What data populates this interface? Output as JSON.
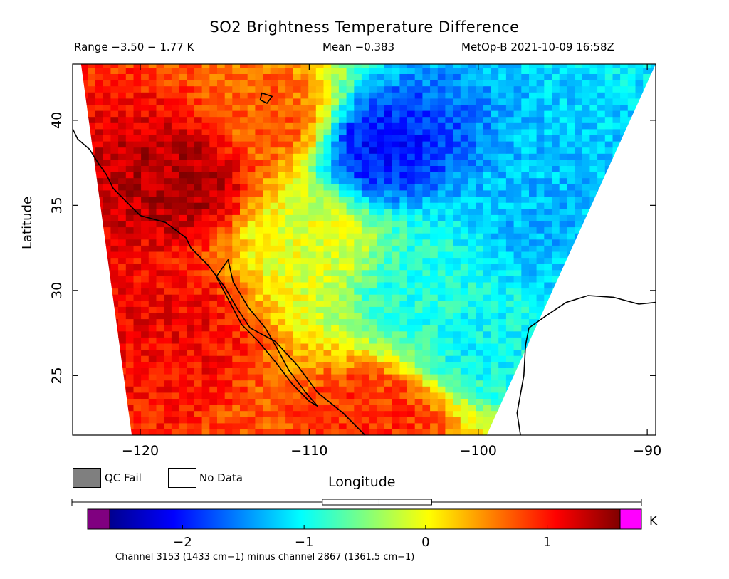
{
  "header": {
    "title": "SO2 Brightness Temperature Difference",
    "range": "Range −3.50 − 1.77 K",
    "mean": "Mean −0.383",
    "satellite_time": "MetOp-B 2021-10-09 16:58Z"
  },
  "legend": {
    "qc_fail": "QC Fail",
    "no_data": "No Data",
    "qc_color": "#7f7f7f",
    "nodata_color": "#ffffff"
  },
  "colorbar": {
    "unit": "K",
    "ticks": [
      "−2",
      "−1",
      "0",
      "1"
    ],
    "tick_values": [
      -2,
      -1,
      0,
      1
    ],
    "range": [
      -2.6,
      1.6
    ],
    "low_color": "#800080",
    "high_color": "#ff00ff",
    "caption": "Channel 3153 (1433 cm−1) minus channel 2867 (1361.5 cm−1)",
    "boxplot": {
      "min": -3.5,
      "q1": -0.85,
      "median": -0.383,
      "q3": 0.05,
      "max": 1.77
    }
  },
  "chart_data": {
    "type": "heatmap",
    "title": "SO2 Brightness Temperature Difference",
    "xlabel": "Longitude",
    "ylabel": "Latitude",
    "xlim": [
      -124,
      -89.5
    ],
    "ylim": [
      21.5,
      43.3
    ],
    "xticks": [
      -120,
      -110,
      -100,
      -90
    ],
    "xtick_labels": [
      "−120",
      "−110",
      "−100",
      "−90"
    ],
    "yticks": [
      25,
      30,
      35,
      40
    ],
    "ytick_labels": [
      "25",
      "30",
      "35",
      "40"
    ],
    "value_range": [
      -3.5,
      1.77
    ],
    "mean": -0.383,
    "unit": "K",
    "colormap": "jet",
    "swath_edges": {
      "west": [
        [
          -123.5,
          43.3
        ],
        [
          -120.5,
          21.5
        ]
      ],
      "east": [
        [
          -89.5,
          43.3
        ],
        [
          -99.5,
          21.5
        ]
      ]
    },
    "features": [
      {
        "lon": -117.5,
        "lat": 36.5,
        "value": 1.4
      },
      {
        "lon": -118.5,
        "lat": 28.0,
        "value": 1.1
      },
      {
        "lon": -106,
        "lat": 38.5,
        "value": -2.0
      },
      {
        "lon": -106,
        "lat": 22.5,
        "value": 0.9
      },
      {
        "lon": -110,
        "lat": 33.0,
        "value": -0.1
      },
      {
        "lon": -103,
        "lat": 30.0,
        "value": -0.9
      },
      {
        "lon": -96,
        "lat": 34.0,
        "value": -1.3
      },
      {
        "lon": -112,
        "lat": 40.0,
        "value": 0.7
      },
      {
        "lon": -100,
        "lat": 27.0,
        "value": -1.0
      }
    ]
  }
}
